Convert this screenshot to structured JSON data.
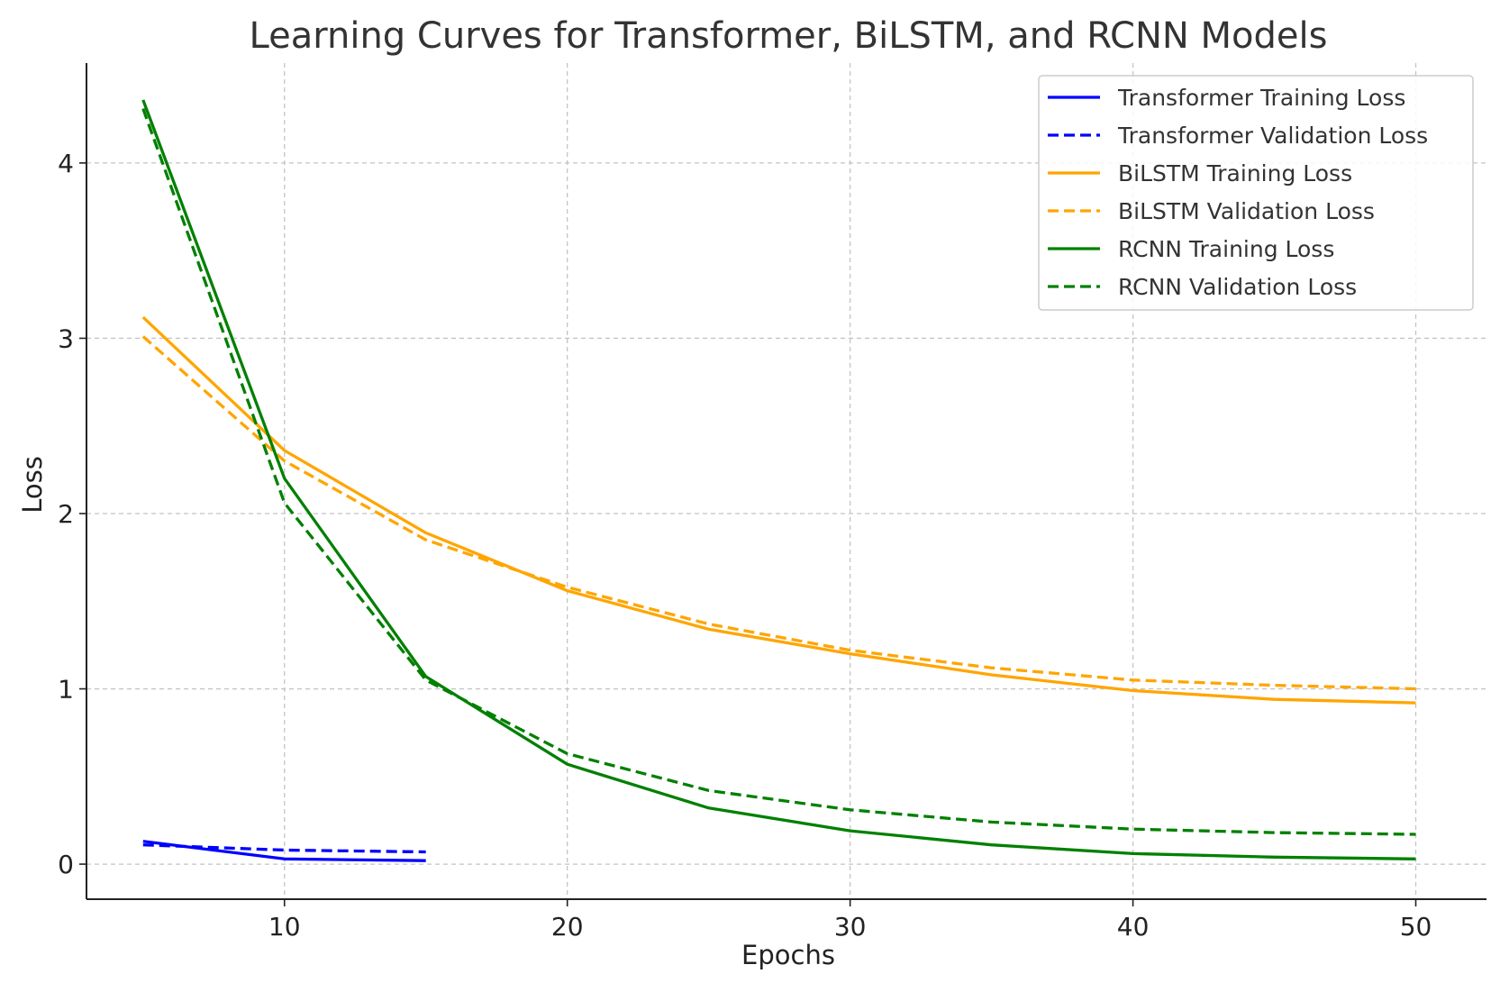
{
  "chart_data": {
    "type": "line",
    "title": "Learning Curves for Transformer, BiLSTM, and RCNN Models",
    "xlabel": "Epochs",
    "ylabel": "Loss",
    "xlim": [
      3,
      52.5
    ],
    "ylim": [
      -0.2,
      4.57
    ],
    "xticks": [
      10,
      20,
      30,
      40,
      50
    ],
    "yticks": [
      0,
      1,
      2,
      3,
      4
    ],
    "grid": true,
    "legend_position": "top-right",
    "series": [
      {
        "name": "Transformer Training Loss",
        "color": "#0000ff",
        "style": "solid",
        "x": [
          5,
          10,
          15
        ],
        "y": [
          0.13,
          0.03,
          0.02
        ]
      },
      {
        "name": "Transformer Validation Loss",
        "color": "#0000ff",
        "style": "dashed",
        "x": [
          5,
          10,
          15
        ],
        "y": [
          0.11,
          0.08,
          0.07
        ]
      },
      {
        "name": "BiLSTM Training Loss",
        "color": "#ffa500",
        "style": "solid",
        "x": [
          5,
          10,
          15,
          20,
          25,
          30,
          35,
          40,
          45,
          50
        ],
        "y": [
          3.12,
          2.36,
          1.89,
          1.56,
          1.34,
          1.2,
          1.08,
          0.99,
          0.94,
          0.92
        ]
      },
      {
        "name": "BiLSTM Validation Loss",
        "color": "#ffa500",
        "style": "dashed",
        "x": [
          5,
          10,
          15,
          20,
          25,
          30,
          35,
          40,
          45,
          50
        ],
        "y": [
          3.01,
          2.3,
          1.85,
          1.58,
          1.37,
          1.22,
          1.12,
          1.05,
          1.02,
          1.0
        ]
      },
      {
        "name": "RCNN Training Loss",
        "color": "#008000",
        "style": "solid",
        "x": [
          5,
          10,
          15,
          20,
          25,
          30,
          35,
          40,
          45,
          50
        ],
        "y": [
          4.36,
          2.2,
          1.07,
          0.57,
          0.32,
          0.19,
          0.11,
          0.06,
          0.04,
          0.03
        ]
      },
      {
        "name": "RCNN Validation Loss",
        "color": "#008000",
        "style": "dashed",
        "x": [
          5,
          10,
          15,
          20,
          25,
          30,
          35,
          40,
          45,
          50
        ],
        "y": [
          4.31,
          2.06,
          1.05,
          0.63,
          0.42,
          0.31,
          0.24,
          0.2,
          0.18,
          0.17
        ]
      }
    ]
  }
}
